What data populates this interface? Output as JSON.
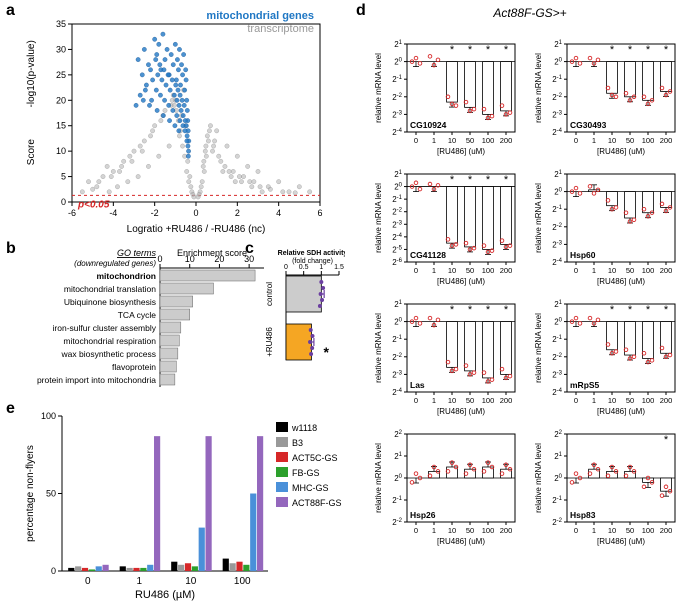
{
  "panel_a": {
    "label": "a",
    "type": "scatter",
    "title_right": "mitochondrial genes",
    "title_right_color": "#1f77c4",
    "title_right2": "transcriptome",
    "title_right2_color": "#999999",
    "xlabel": "Logratio +RU486 / -RU486 (nc)",
    "ylabel_line1": "Score",
    "ylabel_line2": "-log10(p-value)",
    "pvalue_label": "p<0.05",
    "pvalue_color": "#d62728",
    "pvalue_y": 1.3,
    "xlim": [
      -6,
      6
    ],
    "ylim": [
      0,
      35
    ],
    "xtick_step": 2,
    "ytick_step": 5,
    "point_r": 2.2,
    "gray_color": "#b0b0b0",
    "blue_color": "#1f77c4",
    "gray_points": [
      [
        -5.2,
        4
      ],
      [
        -4.8,
        3
      ],
      [
        -4.5,
        5
      ],
      [
        -4.2,
        2
      ],
      [
        -4.0,
        6
      ],
      [
        -3.8,
        3
      ],
      [
        -3.5,
        8
      ],
      [
        -3.3,
        4
      ],
      [
        -3.0,
        10
      ],
      [
        -2.8,
        5
      ],
      [
        -2.5,
        12
      ],
      [
        -2.3,
        7
      ],
      [
        -2.0,
        15
      ],
      [
        -1.8,
        9
      ],
      [
        -1.5,
        18
      ],
      [
        -1.3,
        11
      ],
      [
        -1.0,
        20
      ],
      [
        -0.8,
        13
      ],
      [
        -0.6,
        22
      ],
      [
        -0.5,
        15
      ],
      [
        -0.4,
        8
      ],
      [
        -0.3,
        5
      ],
      [
        -0.25,
        3
      ],
      [
        -0.2,
        2
      ],
      [
        0.2,
        2
      ],
      [
        0.3,
        4
      ],
      [
        0.4,
        6
      ],
      [
        0.5,
        9
      ],
      [
        0.6,
        12
      ],
      [
        0.8,
        10
      ],
      [
        1.0,
        14
      ],
      [
        1.2,
        8
      ],
      [
        1.5,
        11
      ],
      [
        1.8,
        6
      ],
      [
        2.0,
        9
      ],
      [
        2.3,
        5
      ],
      [
        2.5,
        7
      ],
      [
        2.8,
        4
      ],
      [
        3.0,
        6
      ],
      [
        3.5,
        3
      ],
      [
        4.0,
        4
      ],
      [
        4.5,
        2
      ],
      [
        5.0,
        3
      ],
      [
        5.5,
        2
      ],
      [
        -5.5,
        2
      ],
      [
        -4.3,
        7
      ],
      [
        -3.7,
        6
      ],
      [
        -3.2,
        9
      ],
      [
        -2.7,
        11
      ],
      [
        -2.2,
        13
      ],
      [
        -1.7,
        16
      ],
      [
        -1.2,
        19
      ],
      [
        -0.7,
        17
      ],
      [
        0.35,
        7
      ],
      [
        0.45,
        10
      ],
      [
        0.55,
        13
      ],
      [
        0.7,
        15
      ],
      [
        0.9,
        12
      ],
      [
        1.1,
        9
      ],
      [
        1.4,
        7
      ],
      [
        1.7,
        5
      ],
      [
        2.2,
        4
      ],
      [
        2.7,
        3
      ],
      [
        3.2,
        2
      ],
      [
        -4.7,
        4
      ],
      [
        -4.1,
        5
      ],
      [
        -3.6,
        7
      ],
      [
        -3.1,
        8
      ],
      [
        -2.6,
        10
      ],
      [
        -2.1,
        14
      ],
      [
        -1.6,
        17
      ],
      [
        -1.1,
        21
      ],
      [
        0.25,
        3
      ],
      [
        0.38,
        8
      ],
      [
        0.48,
        11
      ],
      [
        0.65,
        14
      ],
      [
        0.85,
        11
      ],
      [
        1.3,
        6
      ],
      [
        1.9,
        4
      ],
      [
        -0.15,
        1.5
      ],
      [
        0.15,
        1.5
      ],
      [
        -0.1,
        1
      ],
      [
        0.1,
        1
      ],
      [
        -0.35,
        4
      ],
      [
        -0.45,
        6
      ],
      [
        -0.55,
        9
      ],
      [
        -0.65,
        11
      ],
      [
        -0.75,
        14
      ],
      [
        -0.85,
        16
      ],
      [
        -0.95,
        18
      ],
      [
        -1.05,
        19
      ],
      [
        -1.15,
        20
      ],
      [
        1.6,
        6
      ],
      [
        2.1,
        5
      ],
      [
        2.6,
        4
      ],
      [
        3.1,
        3
      ],
      [
        3.6,
        2.5
      ],
      [
        4.2,
        2
      ],
      [
        4.8,
        1.8
      ],
      [
        -5.0,
        2.5
      ]
    ],
    "blue_points": [
      [
        -2.8,
        28
      ],
      [
        -2.5,
        30
      ],
      [
        -2.3,
        27
      ],
      [
        -2.0,
        32
      ],
      [
        -1.9,
        29
      ],
      [
        -1.8,
        31
      ],
      [
        -1.7,
        26
      ],
      [
        -1.6,
        33
      ],
      [
        -1.5,
        28
      ],
      [
        -1.4,
        30
      ],
      [
        -1.3,
        25
      ],
      [
        -1.2,
        29
      ],
      [
        -1.1,
        27
      ],
      [
        -1.0,
        31
      ],
      [
        -0.95,
        24
      ],
      [
        -0.9,
        28
      ],
      [
        -0.85,
        26
      ],
      [
        -0.8,
        30
      ],
      [
        -0.75,
        23
      ],
      [
        -0.7,
        27
      ],
      [
        -0.65,
        25
      ],
      [
        -0.6,
        29
      ],
      [
        -0.55,
        22
      ],
      [
        -0.5,
        26
      ],
      [
        -0.48,
        24
      ],
      [
        -0.45,
        20
      ],
      [
        -0.42,
        18
      ],
      [
        -0.4,
        16
      ],
      [
        -0.38,
        14
      ],
      [
        -0.35,
        12
      ],
      [
        -2.6,
        25
      ],
      [
        -2.4,
        23
      ],
      [
        -2.2,
        26
      ],
      [
        -2.1,
        24
      ],
      [
        -1.95,
        28
      ],
      [
        -1.85,
        25
      ],
      [
        -1.75,
        27
      ],
      [
        -1.65,
        24
      ],
      [
        -1.55,
        26
      ],
      [
        -1.45,
        23
      ],
      [
        -1.35,
        25
      ],
      [
        -1.25,
        22
      ],
      [
        -1.15,
        24
      ],
      [
        -1.05,
        21
      ],
      [
        -0.98,
        23
      ],
      [
        -0.92,
        20
      ],
      [
        -0.87,
        22
      ],
      [
        -0.82,
        19
      ],
      [
        -0.77,
        21
      ],
      [
        -0.72,
        18
      ],
      [
        -0.67,
        20
      ],
      [
        -0.62,
        17
      ],
      [
        -0.57,
        19
      ],
      [
        -0.52,
        16
      ],
      [
        -0.47,
        15
      ],
      [
        -0.43,
        13
      ],
      [
        -0.39,
        11
      ],
      [
        -0.36,
        10
      ],
      [
        -2.7,
        21
      ],
      [
        -2.45,
        22
      ],
      [
        -2.15,
        20
      ],
      [
        -1.92,
        22
      ],
      [
        -1.72,
        21
      ],
      [
        -1.52,
        20
      ],
      [
        -1.32,
        19
      ],
      [
        -1.12,
        18
      ],
      [
        -0.93,
        17
      ],
      [
        -0.78,
        16
      ],
      [
        -0.63,
        15
      ],
      [
        -0.53,
        14
      ],
      [
        -0.44,
        12
      ],
      [
        -0.37,
        9
      ],
      [
        -2.9,
        19
      ],
      [
        -2.55,
        20
      ],
      [
        -2.25,
        19
      ],
      [
        -1.88,
        18
      ],
      [
        -1.58,
        17
      ],
      [
        -1.28,
        16
      ],
      [
        -1.02,
        15
      ],
      [
        -0.83,
        14
      ]
    ]
  },
  "panel_b": {
    "label": "b",
    "type": "bar-horizontal",
    "xlabel": "Enrichment score",
    "heading": "GO terms",
    "subheading": "(downregulated genes)",
    "xlim": [
      0,
      35
    ],
    "xticks": [
      0,
      10,
      20,
      30
    ],
    "bar_color": "#cccccc",
    "terms": [
      {
        "name": "mitochondrion",
        "value": 32
      },
      {
        "name": "mitochondrial translation",
        "value": 18
      },
      {
        "name": "Ubiquinone biosynthesis",
        "value": 11
      },
      {
        "name": "TCA cycle",
        "value": 10
      },
      {
        "name": "iron-sulfur cluster assembly",
        "value": 7
      },
      {
        "name": "mitochondrial respiration",
        "value": 6.5
      },
      {
        "name": "wax biosynthetic process",
        "value": 6
      },
      {
        "name": "flavoprotein",
        "value": 5.5
      },
      {
        "name": "protein import into mitochondria",
        "value": 5
      }
    ]
  },
  "panel_c": {
    "label": "c",
    "type": "bar-horizontal",
    "title_line1": "Relative SDH activity",
    "title_line2": "(fold change)",
    "xlim": [
      0,
      1.5
    ],
    "xticks": [
      0,
      0.5,
      1,
      1.5
    ],
    "bars": [
      {
        "label": "control",
        "value": 1.0,
        "color": "#cccccc",
        "err": 0.08,
        "points": [
          1.0,
          1.05,
          0.98,
          1.02,
          0.96
        ]
      },
      {
        "label": "+RU486",
        "value": 0.72,
        "color": "#f5a623",
        "err": 0.07,
        "points": [
          0.7,
          0.75,
          0.68,
          0.74,
          0.71
        ],
        "sig": "*"
      }
    ],
    "point_color": "#6b3fa0",
    "err_color": "#6b3fa0"
  },
  "panel_d": {
    "label": "d",
    "title": "Act88F-GS>+",
    "title_style": "italic",
    "ylabel": "relative mRNA level",
    "xlabel": "[RU486] (uM)",
    "xticks": [
      "0",
      "1",
      "10",
      "50",
      "100",
      "200"
    ],
    "yticks": [
      -4,
      -3,
      -2,
      -1,
      0,
      1
    ],
    "yticks_alt1": [
      -6,
      -5,
      -4,
      -3,
      -2,
      -1,
      0,
      1
    ],
    "yticks_alt2": [
      -2,
      -1,
      0,
      1,
      2
    ],
    "ytick_prefix": "2",
    "bar_color": "#ffffff",
    "bar_border": "#000000",
    "point_color": "#d62728",
    "err_color": "#000000",
    "charts": [
      {
        "gene": "CG10924",
        "row": 0,
        "col": 0,
        "yticks": "yticks",
        "values": [
          0,
          0,
          -2.3,
          -2.6,
          -3.0,
          -2.8
        ],
        "sig": [
          0,
          0,
          1,
          1,
          1,
          1
        ],
        "scatter": [
          [
            0,
            0.2,
            -0.1
          ],
          [
            0.3,
            -0.2,
            0.1
          ],
          [
            -2.0,
            -2.4,
            -2.5
          ],
          [
            -2.3,
            -2.8,
            -2.7
          ],
          [
            -2.7,
            -3.2,
            -3.1
          ],
          [
            -2.5,
            -3.0,
            -2.9
          ]
        ]
      },
      {
        "gene": "CG30493",
        "row": 0,
        "col": 1,
        "yticks": "yticks",
        "values": [
          0,
          0,
          -1.8,
          -2.0,
          -2.2,
          -1.7
        ],
        "sig": [
          0,
          0,
          1,
          1,
          1,
          1
        ],
        "scatter": [
          [
            0,
            0.2,
            -0.1
          ],
          [
            0.2,
            -0.1,
            0.1
          ],
          [
            -1.5,
            -1.9,
            -2.0
          ],
          [
            -1.8,
            -2.2,
            -2.0
          ],
          [
            -2.0,
            -2.4,
            -2.2
          ],
          [
            -1.5,
            -1.9,
            -1.7
          ]
        ]
      },
      {
        "gene": "CG41128",
        "row": 1,
        "col": 0,
        "yticks": "yticks_alt1",
        "values": [
          0,
          0,
          -4.5,
          -4.8,
          -5.0,
          -4.6
        ],
        "sig": [
          0,
          0,
          1,
          1,
          1,
          1
        ],
        "scatter": [
          [
            0,
            0.3,
            -0.2
          ],
          [
            0.2,
            -0.2,
            0.1
          ],
          [
            -4.2,
            -4.7,
            -4.6
          ],
          [
            -4.5,
            -5.0,
            -4.9
          ],
          [
            -4.7,
            -5.2,
            -5.1
          ],
          [
            -4.3,
            -4.8,
            -4.7
          ]
        ]
      },
      {
        "gene": "Hsp60",
        "row": 1,
        "col": 1,
        "yticks": "yticks",
        "values": [
          0,
          0.1,
          -0.8,
          -1.5,
          -1.2,
          -0.9
        ],
        "sig": [
          0,
          0,
          0,
          0,
          0,
          0
        ],
        "scatter": [
          [
            0,
            0.2,
            -0.1
          ],
          [
            0.3,
            -0.1,
            0.1
          ],
          [
            -0.5,
            -1.0,
            -0.9
          ],
          [
            -1.2,
            -1.7,
            -1.6
          ],
          [
            -1.0,
            -1.4,
            -1.2
          ],
          [
            -0.7,
            -1.1,
            -0.9
          ]
        ]
      },
      {
        "gene": "Las",
        "row": 2,
        "col": 0,
        "yticks": "yticks",
        "values": [
          0,
          0,
          -2.6,
          -2.8,
          -3.2,
          -3.0
        ],
        "sig": [
          0,
          0,
          1,
          1,
          1,
          1
        ],
        "scatter": [
          [
            0,
            0.2,
            -0.1
          ],
          [
            0.2,
            -0.2,
            0.1
          ],
          [
            -2.3,
            -2.8,
            -2.7
          ],
          [
            -2.5,
            -3.0,
            -2.9
          ],
          [
            -2.9,
            -3.4,
            -3.3
          ],
          [
            -2.7,
            -3.2,
            -3.1
          ]
        ]
      },
      {
        "gene": "mRpS5",
        "row": 2,
        "col": 1,
        "yticks": "yticks",
        "values": [
          0,
          0,
          -1.6,
          -1.9,
          -2.1,
          -1.8
        ],
        "sig": [
          0,
          0,
          1,
          1,
          1,
          1
        ],
        "scatter": [
          [
            0,
            0.2,
            -0.1
          ],
          [
            0.2,
            -0.1,
            0.1
          ],
          [
            -1.3,
            -1.8,
            -1.7
          ],
          [
            -1.6,
            -2.1,
            -2.0
          ],
          [
            -1.8,
            -2.3,
            -2.2
          ],
          [
            -1.5,
            -2.0,
            -1.9
          ]
        ]
      },
      {
        "gene": "Hsp26",
        "row": 3,
        "col": 0,
        "yticks": "yticks_alt2",
        "values": [
          0,
          0.3,
          0.5,
          0.4,
          0.5,
          0.4
        ],
        "sig": [
          0,
          0,
          0,
          0,
          0,
          0
        ],
        "scatter": [
          [
            -0.2,
            0.2,
            0
          ],
          [
            0.1,
            0.5,
            0.3
          ],
          [
            0.3,
            0.7,
            0.5
          ],
          [
            0.2,
            0.6,
            0.4
          ],
          [
            0.3,
            0.7,
            0.5
          ],
          [
            0.2,
            0.6,
            0.4
          ]
        ]
      },
      {
        "gene": "Hsp83",
        "row": 3,
        "col": 1,
        "yticks": "yticks_alt2",
        "values": [
          0,
          0.4,
          0.3,
          0.3,
          -0.2,
          -0.6
        ],
        "sig": [
          0,
          0,
          0,
          0,
          0,
          1
        ],
        "scatter": [
          [
            -0.2,
            0.2,
            0
          ],
          [
            0.2,
            0.6,
            0.4
          ],
          [
            0.1,
            0.5,
            0.3
          ],
          [
            0.1,
            0.5,
            0.3
          ],
          [
            -0.4,
            0,
            -0.2
          ],
          [
            -0.8,
            -0.4,
            -0.6
          ]
        ]
      }
    ]
  },
  "panel_e": {
    "label": "e",
    "type": "bar-grouped",
    "ylabel": "percentage non-flyers",
    "xlabel": "RU486  (µM)",
    "ylim": [
      0,
      100
    ],
    "yticks": [
      0,
      50,
      100
    ],
    "groups": [
      "0",
      "1",
      "10",
      "100"
    ],
    "series": [
      {
        "name": "w1118",
        "color": "#000000",
        "values": [
          2,
          3,
          6,
          8
        ]
      },
      {
        "name": "B3",
        "color": "#999999",
        "values": [
          3,
          2,
          4,
          5
        ]
      },
      {
        "name": "ACT5C-GS",
        "color": "#d62728",
        "values": [
          2,
          2,
          5,
          6
        ]
      },
      {
        "name": "FB-GS",
        "color": "#2ca02c",
        "values": [
          1,
          2,
          3,
          4
        ]
      },
      {
        "name": "MHC-GS",
        "color": "#4a90d9",
        "values": [
          3,
          4,
          28,
          50
        ]
      },
      {
        "name": "ACT88F-GS",
        "color": "#9467bd",
        "values": [
          4,
          87,
          87,
          87
        ]
      }
    ]
  }
}
